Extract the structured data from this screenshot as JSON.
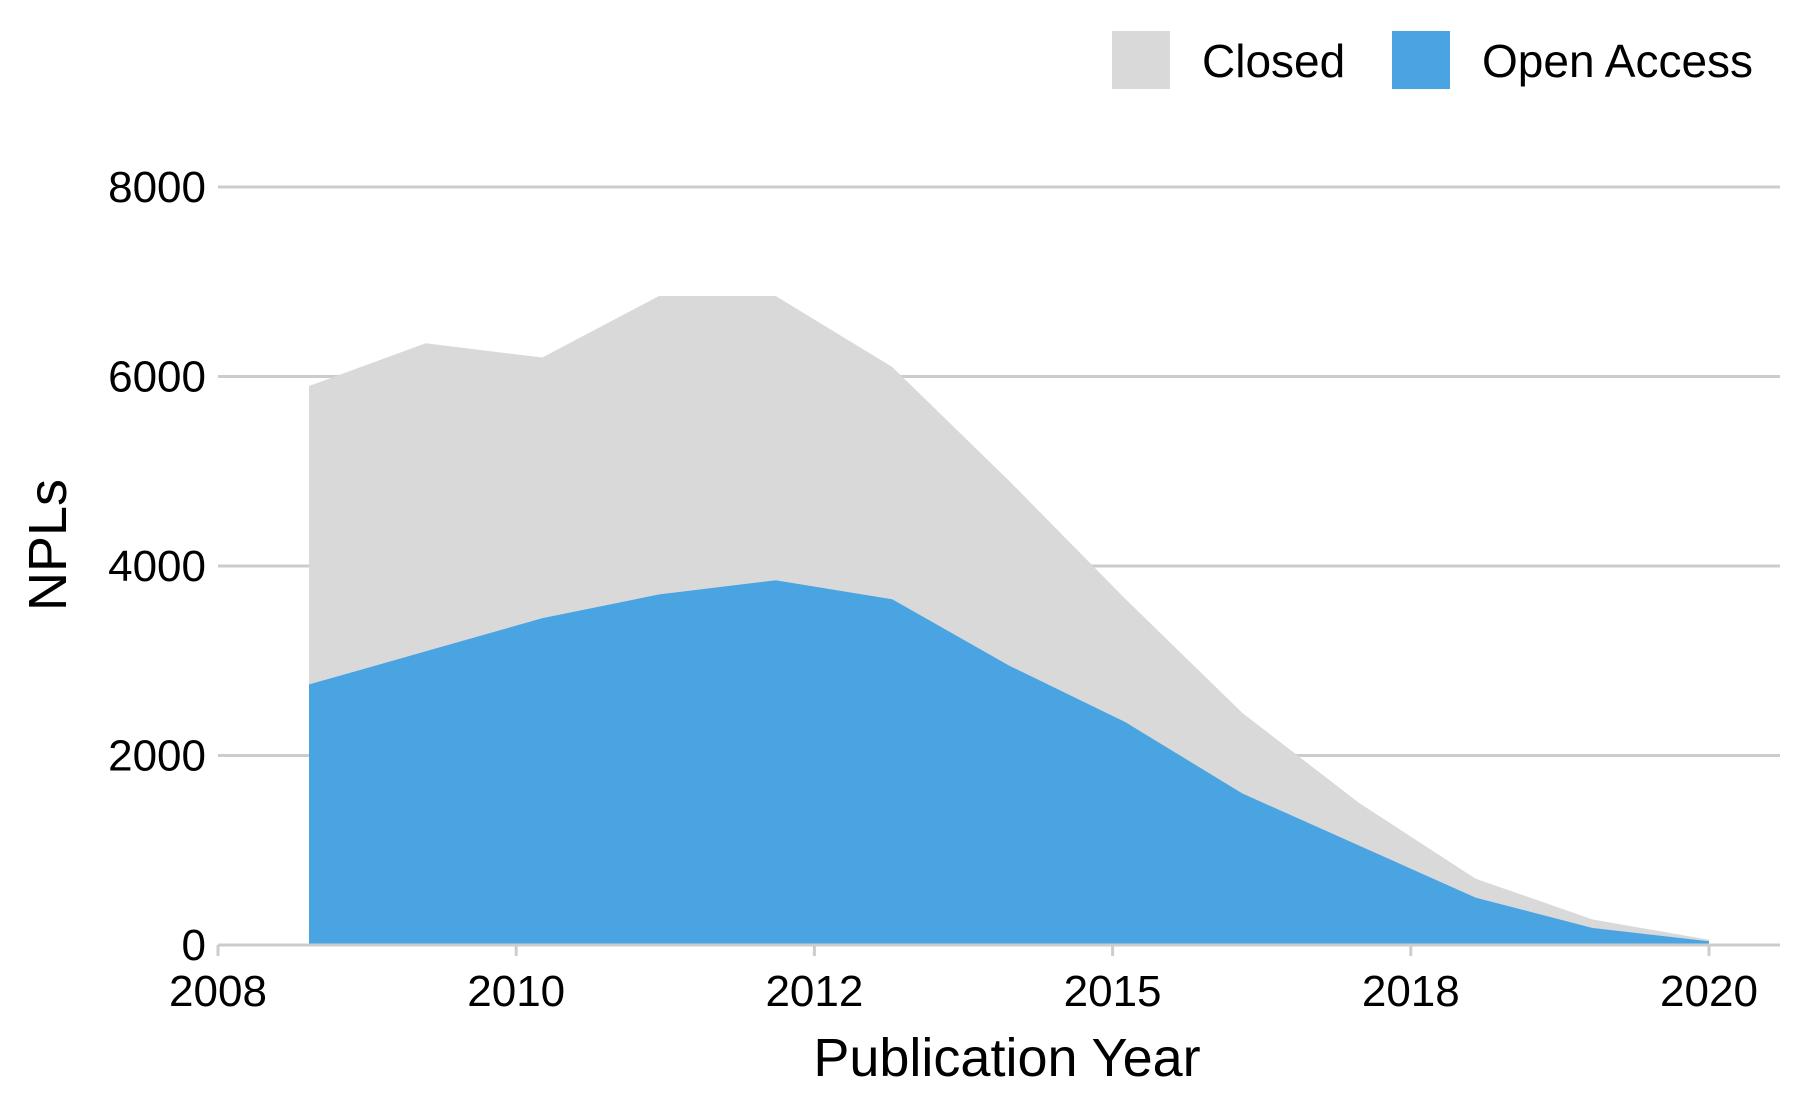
{
  "chart_data": {
    "type": "area",
    "stacked": true,
    "xlabel": "Publication Year",
    "ylabel": "NPLs",
    "ylim": [
      0,
      8000
    ],
    "yticks": [
      0,
      2000,
      4000,
      6000,
      8000
    ],
    "xticks": [
      2008,
      2010,
      2012,
      2015,
      2018,
      2020
    ],
    "grid": "horizontal",
    "legend_position": "top-right",
    "x": [
      2008,
      2009,
      2010,
      2011,
      2012,
      2013,
      2014,
      2015,
      2016,
      2017,
      2018,
      2019,
      2020
    ],
    "series": [
      {
        "name": "Closed",
        "color": "#d9d9d9",
        "values": [
          3150,
          3250,
          2750,
          3150,
          3000,
          2450,
          1950,
          1300,
          850,
          450,
          200,
          90,
          15
        ]
      },
      {
        "name": "Open Access",
        "color": "#4ba4e2",
        "values": [
          2750,
          3100,
          3450,
          3700,
          3850,
          3650,
          2950,
          2350,
          1600,
          1050,
          500,
          180,
          40
        ]
      }
    ]
  }
}
